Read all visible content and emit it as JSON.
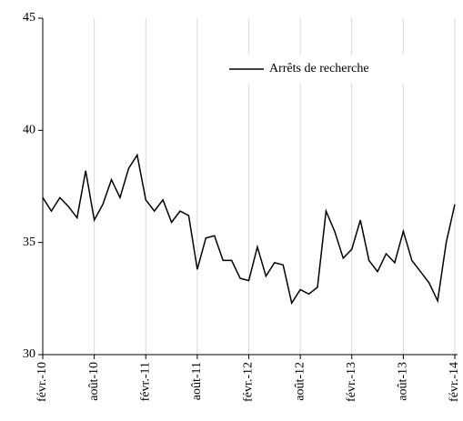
{
  "chart_data": {
    "type": "line",
    "categories": [
      "févr.-10",
      null,
      null,
      null,
      null,
      null,
      "août-10",
      null,
      null,
      null,
      null,
      null,
      "févr.-11",
      null,
      null,
      null,
      null,
      null,
      "août-11",
      null,
      null,
      null,
      null,
      null,
      "févr.-12",
      null,
      null,
      null,
      null,
      null,
      "août-12",
      null,
      null,
      null,
      null,
      null,
      "févr.-13",
      null,
      null,
      null,
      null,
      null,
      "août-13",
      null,
      null,
      null,
      null,
      null,
      "févr.-14"
    ],
    "series": [
      {
        "name": "Arrêts de recherche",
        "color": "#000000",
        "values": [
          37.0,
          36.4,
          37.0,
          36.6,
          36.1,
          38.2,
          36.0,
          36.7,
          37.8,
          37.0,
          38.3,
          38.9,
          36.9,
          36.4,
          36.9,
          35.9,
          36.4,
          36.2,
          33.8,
          35.2,
          35.3,
          34.2,
          34.2,
          33.4,
          33.3,
          34.8,
          33.5,
          34.1,
          34.0,
          32.3,
          32.9,
          32.7,
          33.0,
          36.4,
          35.5,
          34.3,
          34.7,
          36.0,
          34.2,
          33.7,
          34.5,
          34.1,
          35.5,
          34.2,
          33.7,
          33.2,
          32.4,
          35.0,
          36.7
        ]
      }
    ],
    "ylim": [
      30,
      45
    ],
    "yticks": [
      30,
      35,
      40,
      45
    ],
    "xgrid": true,
    "legend": "upper right"
  }
}
